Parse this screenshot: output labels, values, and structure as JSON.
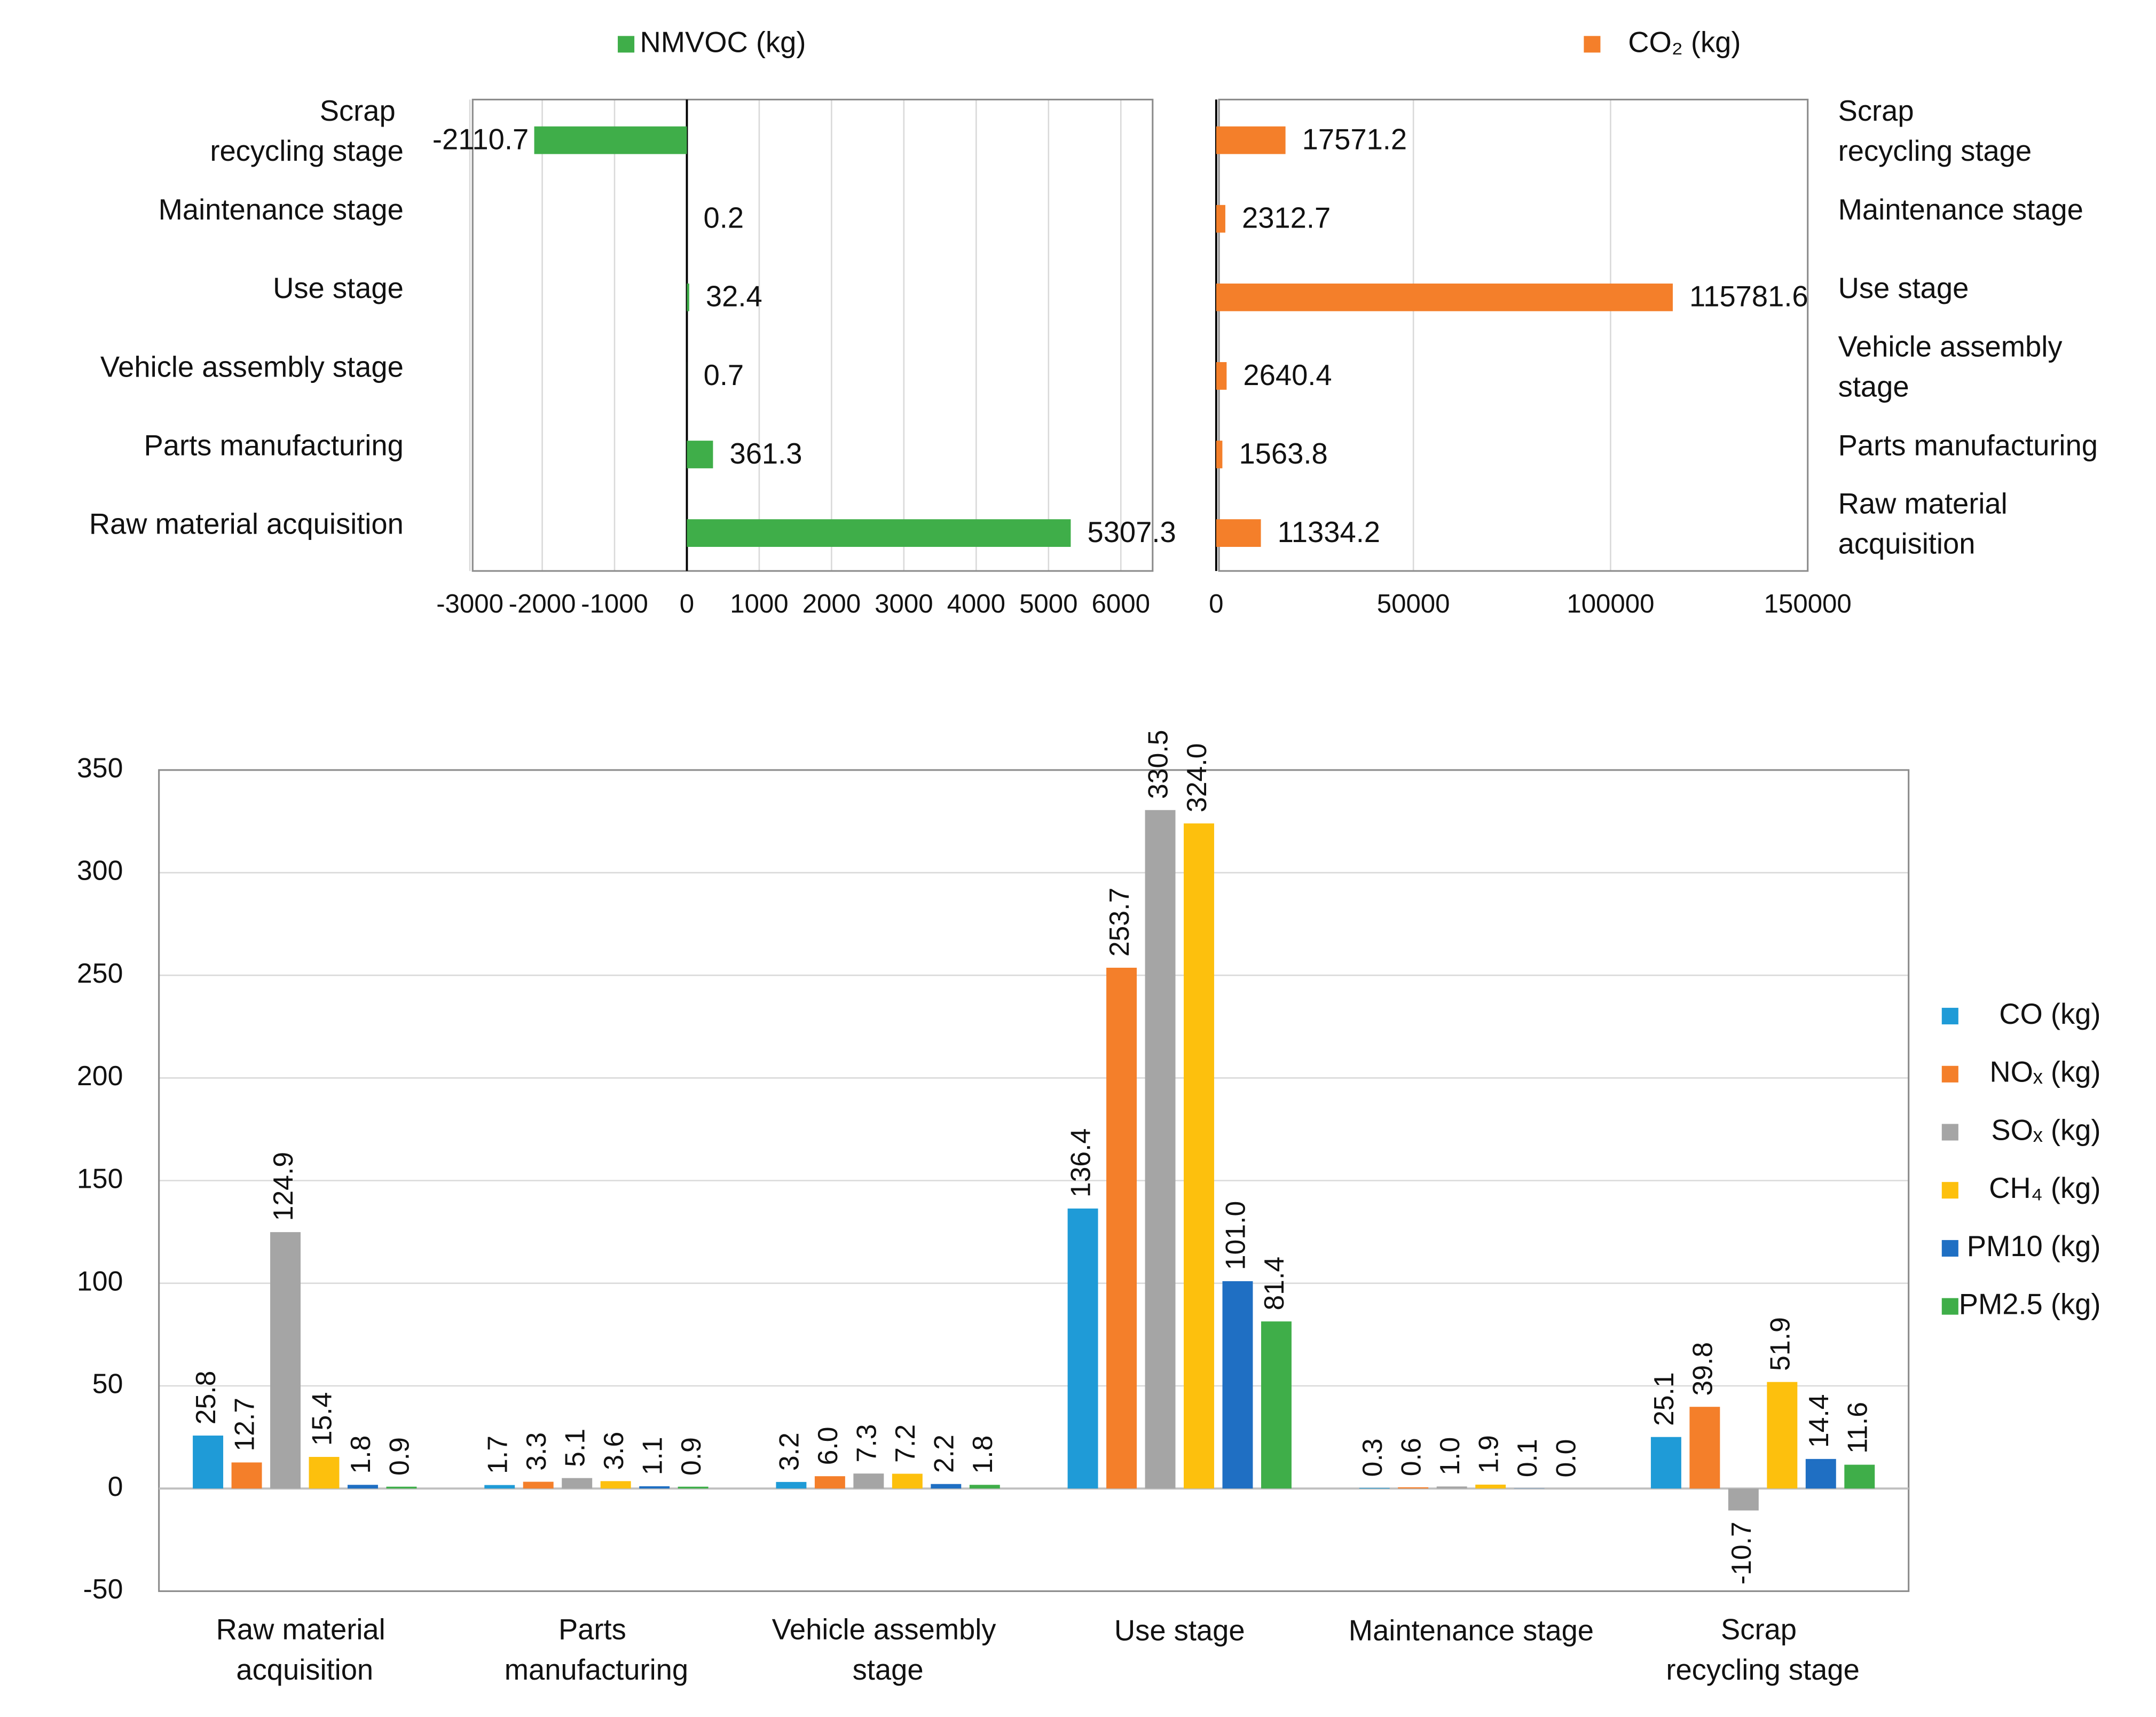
{
  "chart_data": [
    {
      "type": "bar",
      "orientation": "horizontal",
      "categories": [
        "Scrap recycling stage",
        "Maintenance stage",
        "Use stage",
        "Vehicle assembly stage",
        "Parts manufacturing",
        "Raw material acquisition"
      ],
      "series": [
        {
          "name": "NMVOC (kg)",
          "color": "#3fae49",
          "values": [
            -2110.7,
            0.2,
            32.4,
            0.7,
            361.3,
            5307.3
          ]
        }
      ],
      "xlim": [
        -3000,
        6000
      ],
      "xticks": [
        -3000,
        -2000,
        -1000,
        0,
        1000,
        2000,
        3000,
        4000,
        5000,
        6000
      ],
      "grid": true
    },
    {
      "type": "bar",
      "orientation": "horizontal",
      "categories": [
        "Scrap recycling stage",
        "Maintenance stage",
        "Use stage",
        "Vehicle assembly stage",
        "Parts manufacturing",
        "Raw material acquisition"
      ],
      "series": [
        {
          "name": "CO₂ (kg)",
          "color": "#f47f2a",
          "values": [
            17571.2,
            2312.7,
            115781.6,
            2640.4,
            1563.8,
            11334.2
          ]
        }
      ],
      "xlim": [
        0,
        150000
      ],
      "xticks": [
        0,
        50000,
        100000,
        150000
      ],
      "grid": true
    },
    {
      "type": "bar",
      "orientation": "vertical",
      "categories": [
        "Raw material acquisition",
        "Parts manufacturing",
        "Vehicle assembly stage",
        "Use stage",
        "Maintenance stage",
        "Scrap recycling stage"
      ],
      "series": [
        {
          "name": "CO (kg)",
          "color": "#1f9bd7",
          "values": [
            25.8,
            1.7,
            3.2,
            136.4,
            0.3,
            25.1
          ],
          "value_labels": [
            "25.8",
            "1.7",
            "3.2",
            "136.4",
            "0.3",
            "25.1"
          ]
        },
        {
          "name": "NOₓ (kg)",
          "color": "#f47f2a",
          "values": [
            12.7,
            3.3,
            6.0,
            253.7,
            0.6,
            39.8
          ],
          "value_labels": [
            "12.7",
            "3.3",
            "6.0",
            "253.7",
            "0.6",
            "39.8"
          ]
        },
        {
          "name": "SOₓ (kg)",
          "color": "#a5a5a5",
          "values": [
            124.9,
            5.1,
            7.3,
            330.5,
            1.0,
            -10.7
          ],
          "value_labels": [
            "124.9",
            "5.1",
            "7.3",
            "330.5",
            "1.0",
            "-10.7"
          ]
        },
        {
          "name": "CH₄ (kg)",
          "color": "#fdc00d",
          "values": [
            15.4,
            3.6,
            7.2,
            324.0,
            1.9,
            51.9
          ],
          "value_labels": [
            "15.4",
            "3.6",
            "7.2",
            "324.0",
            "1.9",
            "51.9"
          ]
        },
        {
          "name": "PM10 (kg)",
          "color": "#1f6fc3",
          "values": [
            1.8,
            1.1,
            2.2,
            101.0,
            0.1,
            14.4
          ],
          "value_labels": [
            "1.8",
            "1.1",
            "2.2",
            "101.0",
            "0.1",
            "14.4"
          ]
        },
        {
          "name": "PM2.5 (kg)",
          "color": "#3fae49",
          "values": [
            0.9,
            0.9,
            1.8,
            81.4,
            0.0,
            11.6
          ],
          "value_labels": [
            "0.9",
            "0.9",
            "1.8",
            "81.4",
            "0.0",
            "11.6"
          ]
        }
      ],
      "ylim": [
        -50,
        350
      ],
      "yticks": [
        -50,
        0,
        50,
        100,
        150,
        200,
        250,
        300,
        350
      ],
      "grid": true
    }
  ]
}
